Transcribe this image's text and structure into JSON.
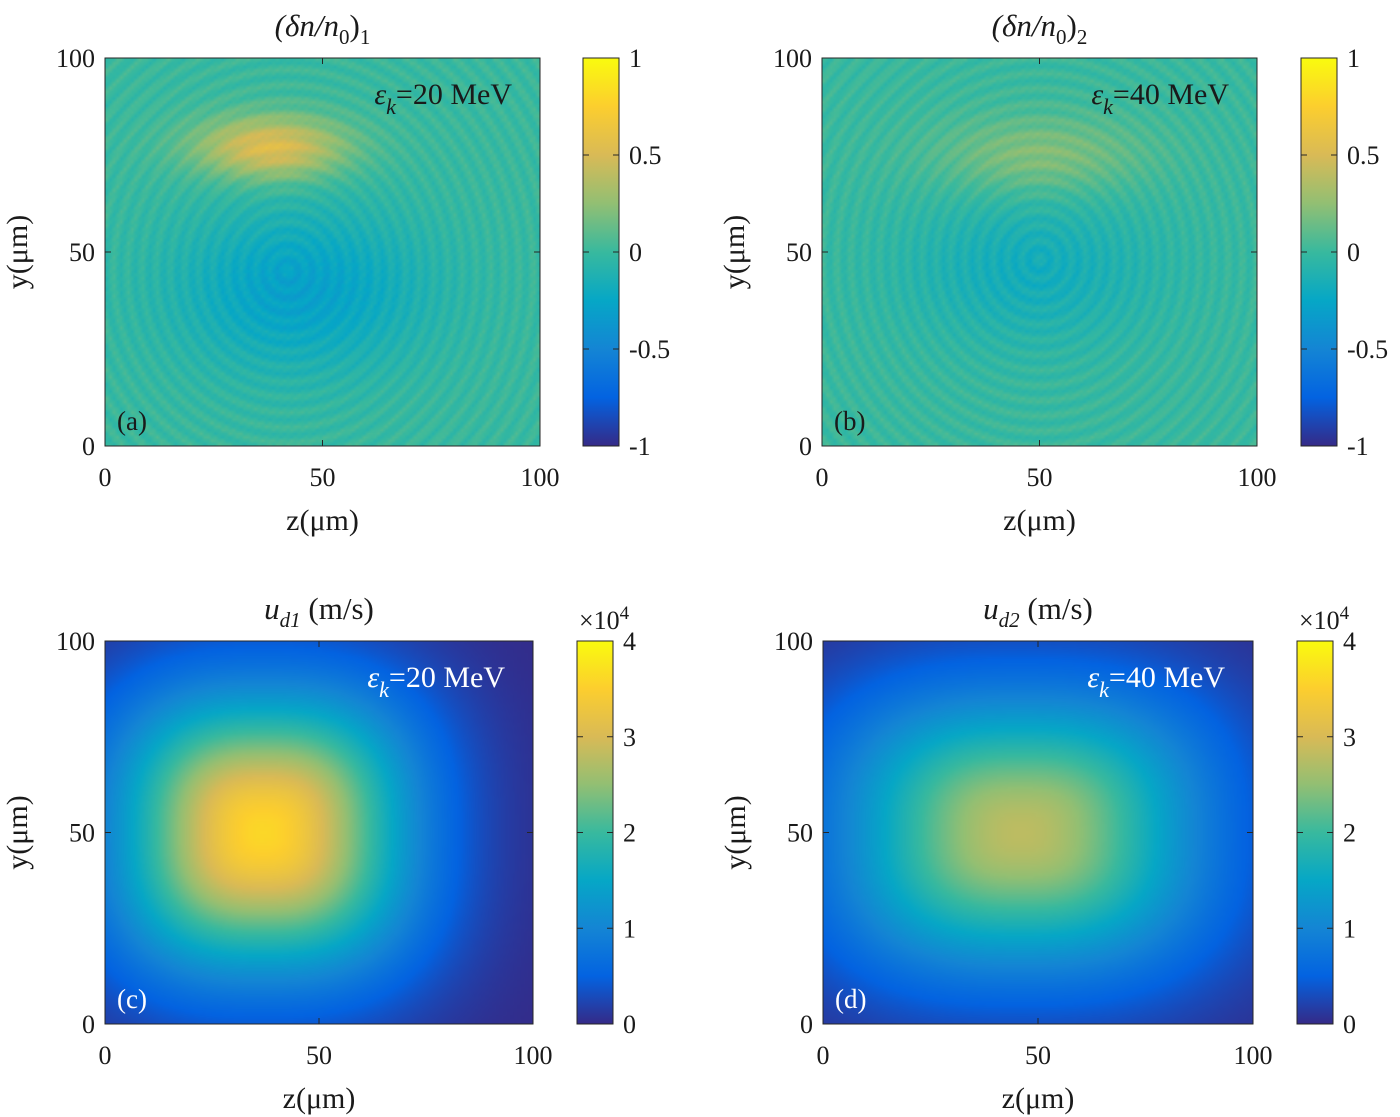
{
  "figure": {
    "layout": "2x2 grid of heatmaps with colorbars",
    "colormap": "parula"
  },
  "colormap_stops": [
    "#352a87",
    "#0363e1",
    "#1485d4",
    "#06a7c6",
    "#38b99e",
    "#92bf73",
    "#d9ba56",
    "#fcce2e",
    "#f9fb0e"
  ],
  "chart_data": [
    {
      "type": "heatmap",
      "panel": "(a)",
      "title": "(δn/n0)1",
      "title_parts": {
        "lead": "(δn/n",
        "sub0": "0",
        "close": ")",
        "sub": "1"
      },
      "annotation": {
        "symbol": "ε",
        "subscript": "k",
        "text": "=20 MeV"
      },
      "xlabel": "z(μm)",
      "ylabel": "y(μm)",
      "xlim": [
        0,
        100
      ],
      "ylim": [
        0,
        100
      ],
      "xticks": [
        "0",
        "50",
        "100"
      ],
      "yticks": [
        "0",
        "50",
        "100"
      ],
      "clim": [
        -1,
        1
      ],
      "cbar_ticks": [
        "-1",
        "-0.5",
        "0",
        "0.5",
        "1"
      ],
      "cbar_exponent": "",
      "background_value": 0,
      "field": [
        {
          "z": 38,
          "y": 77,
          "sz": 17,
          "sy": 8,
          "amp": 0.55
        },
        {
          "z": 45,
          "y": 40,
          "sz": 28,
          "sy": 20,
          "amp": -0.3
        }
      ],
      "ring_pattern": {
        "center_z": 42,
        "center_y": 45,
        "amplitude": 0.05
      }
    },
    {
      "type": "heatmap",
      "panel": "(b)",
      "title": "(δn/n0)2",
      "title_parts": {
        "lead": "(δn/n",
        "sub0": "0",
        "close": ")",
        "sub": "2"
      },
      "annotation": {
        "symbol": "ε",
        "subscript": "k",
        "text": "=40 MeV"
      },
      "xlabel": "z(μm)",
      "ylabel": "y(μm)",
      "xlim": [
        0,
        100
      ],
      "ylim": [
        0,
        100
      ],
      "xticks": [
        "0",
        "50",
        "100"
      ],
      "yticks": [
        "0",
        "50",
        "100"
      ],
      "clim": [
        -1,
        1
      ],
      "cbar_ticks": [
        "-1",
        "-0.5",
        "0",
        "0.5",
        "1"
      ],
      "cbar_exponent": "",
      "background_value": 0,
      "field": [
        {
          "z": 50,
          "y": 75,
          "sz": 24,
          "sy": 10,
          "amp": 0.22
        },
        {
          "z": 48,
          "y": 45,
          "sz": 28,
          "sy": 18,
          "amp": -0.18
        }
      ],
      "ring_pattern": {
        "center_z": 50,
        "center_y": 48,
        "amplitude": 0.05
      }
    },
    {
      "type": "heatmap",
      "panel": "(c)",
      "title": "ud1 (m/s)",
      "title_parts": {
        "lead": "u",
        "sub": "d1",
        "tail": " (m/s)"
      },
      "annotation": {
        "symbol": "ε",
        "subscript": "k",
        "text": "=20 MeV"
      },
      "xlabel": "z(μm)",
      "ylabel": "y(μm)",
      "xlim": [
        0,
        100
      ],
      "ylim": [
        0,
        100
      ],
      "xticks": [
        "0",
        "50",
        "100"
      ],
      "yticks": [
        "0",
        "50",
        "100"
      ],
      "clim": [
        0,
        4
      ],
      "cbar_ticks": [
        "0",
        "1",
        "2",
        "3",
        "4"
      ],
      "cbar_exponent": "×10^4",
      "cbar_exponent_parts": {
        "base": "×10",
        "exp": "4"
      },
      "background_value": 0,
      "peak_value": 3.6,
      "field": [
        {
          "z": 37,
          "y": 50,
          "sz": 34,
          "sy": 36,
          "amp": 3.6
        }
      ]
    },
    {
      "type": "heatmap",
      "panel": "(d)",
      "title": "ud2 (m/s)",
      "title_parts": {
        "lead": "u",
        "sub": "d2",
        "tail": " (m/s)"
      },
      "annotation": {
        "symbol": "ε",
        "subscript": "k",
        "text": "=40 MeV"
      },
      "xlabel": "z(μm)",
      "ylabel": "y(μm)",
      "xlim": [
        0,
        100
      ],
      "ylim": [
        0,
        100
      ],
      "xticks": [
        "0",
        "50",
        "100"
      ],
      "yticks": [
        "0",
        "50",
        "100"
      ],
      "clim": [
        0,
        4
      ],
      "cbar_ticks": [
        "0",
        "1",
        "2",
        "3",
        "4"
      ],
      "cbar_exponent": "×10^4",
      "cbar_exponent_parts": {
        "base": "×10",
        "exp": "4"
      },
      "background_value": 0,
      "peak_value": 2.8,
      "field": [
        {
          "z": 46,
          "y": 50,
          "sz": 42,
          "sy": 36,
          "amp": 2.8
        }
      ]
    }
  ]
}
